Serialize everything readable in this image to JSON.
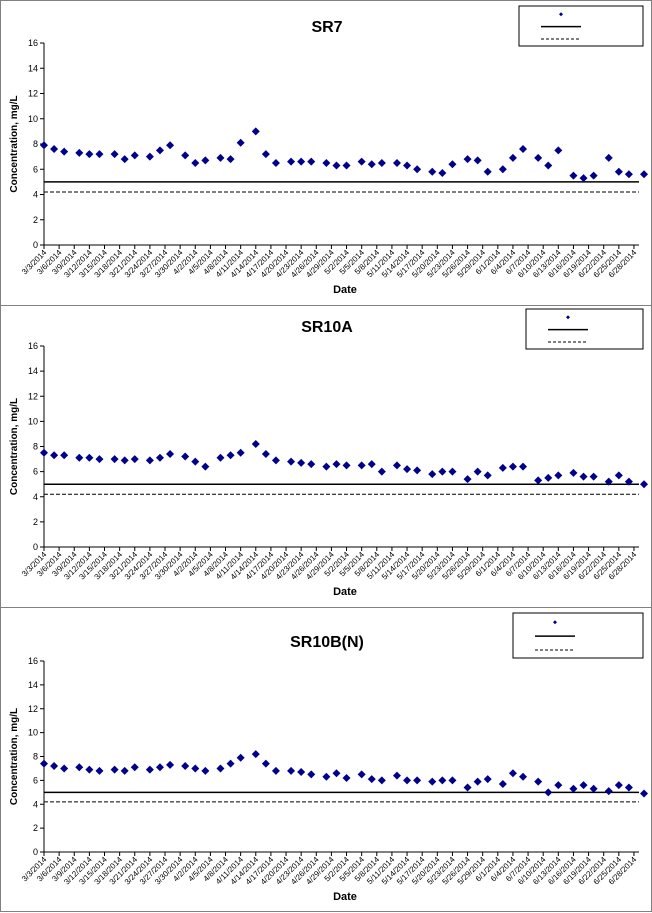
{
  "colors": {
    "marker": "#00008B",
    "line": "#000000",
    "axis": "#000000",
    "frame": "#808080"
  },
  "chart_data": [
    {
      "type": "scatter",
      "title": "SR7",
      "xlabel": "Date",
      "ylabel": "Concentration, mg/L",
      "ylim": [
        0,
        16
      ],
      "yticks": [
        0,
        2,
        4,
        6,
        8,
        10,
        12,
        14,
        16
      ],
      "xlim": [
        "3/3/2014",
        "6/29/2014"
      ],
      "xticks": [
        "3/3/2014",
        "3/6/2014",
        "3/9/2014",
        "3/12/2014",
        "3/15/2014",
        "3/18/2014",
        "3/21/2014",
        "3/24/2014",
        "3/27/2014",
        "3/30/2014",
        "4/2/2014",
        "4/5/2014",
        "4/8/2014",
        "4/11/2014",
        "4/14/2014",
        "4/17/2014",
        "4/20/2014",
        "4/23/2014",
        "4/26/2014",
        "4/29/2014",
        "5/2/2014",
        "5/5/2014",
        "5/8/2014",
        "5/11/2014",
        "5/14/2014",
        "5/17/2014",
        "5/20/2014",
        "5/23/2014",
        "5/26/2014",
        "5/29/2014",
        "6/1/2014",
        "6/4/2014",
        "6/7/2014",
        "6/10/2014",
        "6/13/2014",
        "6/16/2014",
        "6/19/2014",
        "6/22/2014",
        "6/25/2014",
        "6/28/2014"
      ],
      "grid": false,
      "legend_position": "top-right",
      "legend": [
        "",
        "",
        ""
      ],
      "reference_lines": [
        {
          "style": "solid",
          "y": 5.0
        },
        {
          "style": "dashed",
          "y": 4.2
        }
      ],
      "series": [
        {
          "points": [
            [
              "3/3/2014",
              7.9
            ],
            [
              "3/5/2014",
              7.6
            ],
            [
              "3/7/2014",
              7.4
            ],
            [
              "3/10/2014",
              7.3
            ],
            [
              "3/12/2014",
              7.2
            ],
            [
              "3/14/2014",
              7.2
            ],
            [
              "3/17/2014",
              7.2
            ],
            [
              "3/19/2014",
              6.8
            ],
            [
              "3/21/2014",
              7.1
            ],
            [
              "3/24/2014",
              7.0
            ],
            [
              "3/26/2014",
              7.5
            ],
            [
              "3/28/2014",
              7.9
            ],
            [
              "3/31/2014",
              7.1
            ],
            [
              "4/2/2014",
              6.5
            ],
            [
              "4/4/2014",
              6.7
            ],
            [
              "4/7/2014",
              6.9
            ],
            [
              "4/9/2014",
              6.8
            ],
            [
              "4/11/2014",
              8.1
            ],
            [
              "4/14/2014",
              9.0
            ],
            [
              "4/16/2014",
              7.2
            ],
            [
              "4/18/2014",
              6.5
            ],
            [
              "4/21/2014",
              6.6
            ],
            [
              "4/23/2014",
              6.6
            ],
            [
              "4/25/2014",
              6.6
            ],
            [
              "4/28/2014",
              6.5
            ],
            [
              "4/30/2014",
              6.3
            ],
            [
              "5/2/2014",
              6.3
            ],
            [
              "5/5/2014",
              6.6
            ],
            [
              "5/7/2014",
              6.4
            ],
            [
              "5/9/2014",
              6.5
            ],
            [
              "5/12/2014",
              6.5
            ],
            [
              "5/14/2014",
              6.3
            ],
            [
              "5/16/2014",
              6.0
            ],
            [
              "5/19/2014",
              5.8
            ],
            [
              "5/21/2014",
              5.7
            ],
            [
              "5/23/2014",
              6.4
            ],
            [
              "5/26/2014",
              6.8
            ],
            [
              "5/28/2014",
              6.7
            ],
            [
              "5/30/2014",
              5.8
            ],
            [
              "6/2/2014",
              6.0
            ],
            [
              "6/4/2014",
              6.9
            ],
            [
              "6/6/2014",
              7.6
            ],
            [
              "6/9/2014",
              6.9
            ],
            [
              "6/11/2014",
              6.3
            ],
            [
              "6/13/2014",
              7.5
            ],
            [
              "6/16/2014",
              5.5
            ],
            [
              "6/18/2014",
              5.3
            ],
            [
              "6/20/2014",
              5.5
            ],
            [
              "6/23/2014",
              6.9
            ],
            [
              "6/25/2014",
              5.8
            ],
            [
              "6/27/2014",
              5.6
            ],
            [
              "6/30/2014",
              5.6
            ]
          ]
        }
      ]
    },
    {
      "type": "scatter",
      "title": "SR10A",
      "xlabel": "Date",
      "ylabel": "Concentration, mg/L",
      "ylim": [
        0,
        16
      ],
      "yticks": [
        0,
        2,
        4,
        6,
        8,
        10,
        12,
        14,
        16
      ],
      "xlim": [
        "3/3/2014",
        "6/29/2014"
      ],
      "xticks": [
        "3/3/2014",
        "3/6/2014",
        "3/9/2014",
        "3/12/2014",
        "3/15/2014",
        "3/18/2014",
        "3/21/2014",
        "3/24/2014",
        "3/27/2014",
        "3/30/2014",
        "4/2/2014",
        "4/5/2014",
        "4/8/2014",
        "4/11/2014",
        "4/14/2014",
        "4/17/2014",
        "4/20/2014",
        "4/23/2014",
        "4/26/2014",
        "4/29/2014",
        "5/2/2014",
        "5/5/2014",
        "5/8/2014",
        "5/11/2014",
        "5/14/2014",
        "5/17/2014",
        "5/20/2014",
        "5/23/2014",
        "5/26/2014",
        "5/29/2014",
        "6/1/2014",
        "6/4/2014",
        "6/7/2014",
        "6/10/2014",
        "6/13/2014",
        "6/16/2014",
        "6/19/2014",
        "6/22/2014",
        "6/25/2014",
        "6/28/2014"
      ],
      "grid": false,
      "legend_position": "top-right",
      "legend": [
        "",
        "",
        ""
      ],
      "reference_lines": [
        {
          "style": "solid",
          "y": 5.0
        },
        {
          "style": "dashed",
          "y": 4.2
        }
      ],
      "series": [
        {
          "points": [
            [
              "3/3/2014",
              7.5
            ],
            [
              "3/5/2014",
              7.3
            ],
            [
              "3/7/2014",
              7.3
            ],
            [
              "3/10/2014",
              7.1
            ],
            [
              "3/12/2014",
              7.1
            ],
            [
              "3/14/2014",
              7.0
            ],
            [
              "3/17/2014",
              7.0
            ],
            [
              "3/19/2014",
              6.9
            ],
            [
              "3/21/2014",
              7.0
            ],
            [
              "3/24/2014",
              6.9
            ],
            [
              "3/26/2014",
              7.1
            ],
            [
              "3/28/2014",
              7.4
            ],
            [
              "3/31/2014",
              7.2
            ],
            [
              "4/2/2014",
              6.8
            ],
            [
              "4/4/2014",
              6.4
            ],
            [
              "4/7/2014",
              7.1
            ],
            [
              "4/9/2014",
              7.3
            ],
            [
              "4/11/2014",
              7.5
            ],
            [
              "4/14/2014",
              8.2
            ],
            [
              "4/16/2014",
              7.4
            ],
            [
              "4/18/2014",
              6.9
            ],
            [
              "4/21/2014",
              6.8
            ],
            [
              "4/23/2014",
              6.7
            ],
            [
              "4/25/2014",
              6.6
            ],
            [
              "4/28/2014",
              6.4
            ],
            [
              "4/30/2014",
              6.6
            ],
            [
              "5/2/2014",
              6.5
            ],
            [
              "5/5/2014",
              6.5
            ],
            [
              "5/7/2014",
              6.6
            ],
            [
              "5/9/2014",
              6.0
            ],
            [
              "5/12/2014",
              6.5
            ],
            [
              "5/14/2014",
              6.2
            ],
            [
              "5/16/2014",
              6.1
            ],
            [
              "5/19/2014",
              5.8
            ],
            [
              "5/21/2014",
              6.0
            ],
            [
              "5/23/2014",
              6.0
            ],
            [
              "5/26/2014",
              5.4
            ],
            [
              "5/28/2014",
              6.0
            ],
            [
              "5/30/2014",
              5.7
            ],
            [
              "6/2/2014",
              6.3
            ],
            [
              "6/4/2014",
              6.4
            ],
            [
              "6/6/2014",
              6.4
            ],
            [
              "6/9/2014",
              5.3
            ],
            [
              "6/11/2014",
              5.5
            ],
            [
              "6/13/2014",
              5.7
            ],
            [
              "6/16/2014",
              5.9
            ],
            [
              "6/18/2014",
              5.6
            ],
            [
              "6/20/2014",
              5.6
            ],
            [
              "6/23/2014",
              5.2
            ],
            [
              "6/25/2014",
              5.7
            ],
            [
              "6/27/2014",
              5.2
            ],
            [
              "6/30/2014",
              5.0
            ]
          ]
        }
      ]
    },
    {
      "type": "scatter",
      "title": "SR10B(N)",
      "xlabel": "Date",
      "ylabel": "Concentration, mg/L",
      "ylim": [
        0,
        16
      ],
      "yticks": [
        0,
        2,
        4,
        6,
        8,
        10,
        12,
        14,
        16
      ],
      "xlim": [
        "3/3/2014",
        "6/29/2014"
      ],
      "xticks": [
        "3/3/2014",
        "3/6/2014",
        "3/9/2014",
        "3/12/2014",
        "3/15/2014",
        "3/18/2014",
        "3/21/2014",
        "3/24/2014",
        "3/27/2014",
        "3/30/2014",
        "4/2/2014",
        "4/5/2014",
        "4/8/2014",
        "4/11/2014",
        "4/14/2014",
        "4/17/2014",
        "4/20/2014",
        "4/23/2014",
        "4/26/2014",
        "4/29/2014",
        "5/2/2014",
        "5/5/2014",
        "5/8/2014",
        "5/11/2014",
        "5/14/2014",
        "5/17/2014",
        "5/20/2014",
        "5/23/2014",
        "5/26/2014",
        "5/29/2014",
        "6/1/2014",
        "6/4/2014",
        "6/7/2014",
        "6/10/2014",
        "6/13/2014",
        "6/16/2014",
        "6/19/2014",
        "6/22/2014",
        "6/25/2014",
        "6/28/2014"
      ],
      "grid": false,
      "legend_position": "top-right",
      "legend": [
        "",
        "",
        ""
      ],
      "reference_lines": [
        {
          "style": "solid",
          "y": 5.0
        },
        {
          "style": "dashed",
          "y": 4.2
        }
      ],
      "series": [
        {
          "points": [
            [
              "3/3/2014",
              7.4
            ],
            [
              "3/5/2014",
              7.2
            ],
            [
              "3/7/2014",
              7.0
            ],
            [
              "3/10/2014",
              7.1
            ],
            [
              "3/12/2014",
              6.9
            ],
            [
              "3/14/2014",
              6.8
            ],
            [
              "3/17/2014",
              6.9
            ],
            [
              "3/19/2014",
              6.8
            ],
            [
              "3/21/2014",
              7.1
            ],
            [
              "3/24/2014",
              6.9
            ],
            [
              "3/26/2014",
              7.1
            ],
            [
              "3/28/2014",
              7.3
            ],
            [
              "3/31/2014",
              7.2
            ],
            [
              "4/2/2014",
              7.0
            ],
            [
              "4/4/2014",
              6.8
            ],
            [
              "4/7/2014",
              7.0
            ],
            [
              "4/9/2014",
              7.4
            ],
            [
              "4/11/2014",
              7.9
            ],
            [
              "4/14/2014",
              8.2
            ],
            [
              "4/16/2014",
              7.4
            ],
            [
              "4/18/2014",
              6.8
            ],
            [
              "4/21/2014",
              6.8
            ],
            [
              "4/23/2014",
              6.7
            ],
            [
              "4/25/2014",
              6.5
            ],
            [
              "4/28/2014",
              6.3
            ],
            [
              "4/30/2014",
              6.6
            ],
            [
              "5/2/2014",
              6.2
            ],
            [
              "5/5/2014",
              6.5
            ],
            [
              "5/7/2014",
              6.1
            ],
            [
              "5/9/2014",
              6.0
            ],
            [
              "5/12/2014",
              6.4
            ],
            [
              "5/14/2014",
              6.0
            ],
            [
              "5/16/2014",
              6.0
            ],
            [
              "5/19/2014",
              5.9
            ],
            [
              "5/21/2014",
              6.0
            ],
            [
              "5/23/2014",
              6.0
            ],
            [
              "5/26/2014",
              5.4
            ],
            [
              "5/28/2014",
              5.9
            ],
            [
              "5/30/2014",
              6.1
            ],
            [
              "6/2/2014",
              5.7
            ],
            [
              "6/4/2014",
              6.6
            ],
            [
              "6/6/2014",
              6.3
            ],
            [
              "6/9/2014",
              5.9
            ],
            [
              "6/11/2014",
              5.0
            ],
            [
              "6/13/2014",
              5.6
            ],
            [
              "6/16/2014",
              5.3
            ],
            [
              "6/18/2014",
              5.6
            ],
            [
              "6/20/2014",
              5.3
            ],
            [
              "6/23/2014",
              5.1
            ],
            [
              "6/25/2014",
              5.6
            ],
            [
              "6/27/2014",
              5.4
            ],
            [
              "6/30/2014",
              4.9
            ]
          ]
        }
      ]
    }
  ]
}
